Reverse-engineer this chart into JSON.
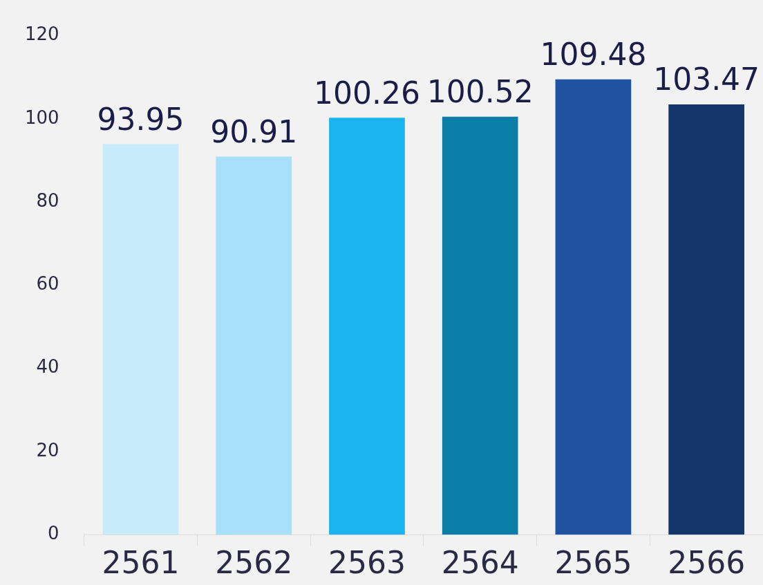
{
  "chart_data": {
    "type": "bar",
    "categories": [
      "2561",
      "2562",
      "2563",
      "2564",
      "2565",
      "2566"
    ],
    "values": [
      93.95,
      90.91,
      100.26,
      100.52,
      109.48,
      103.47
    ],
    "colors": [
      "#c8ebfa",
      "#a8e0fa",
      "#1cb4f0",
      "#0b7ea8",
      "#1f52a0",
      "#14366a"
    ],
    "ylim": [
      0,
      120
    ],
    "yticks": [
      0,
      20,
      40,
      60,
      80,
      100,
      120
    ],
    "grid": false,
    "legend": false,
    "data_labels": true
  }
}
